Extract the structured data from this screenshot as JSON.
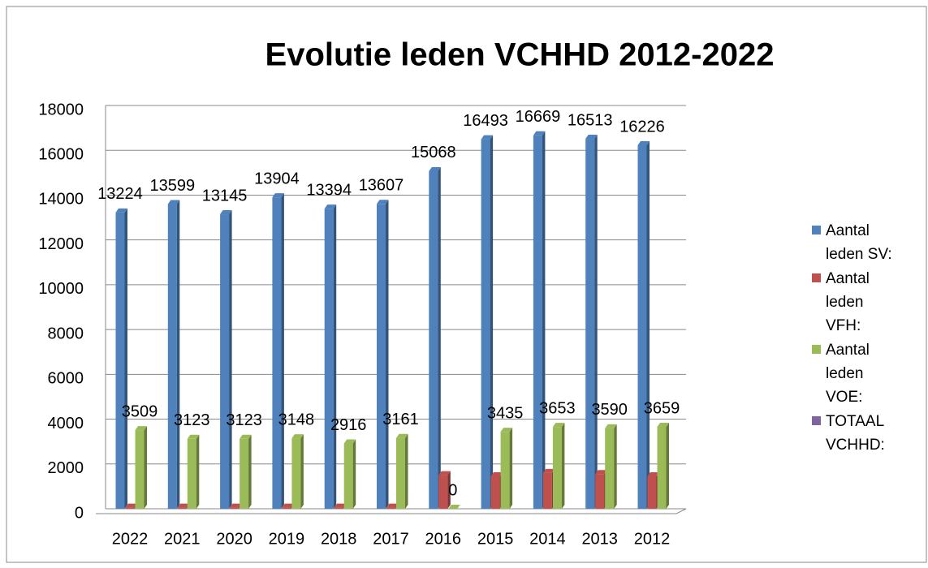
{
  "chart_data": {
    "type": "bar3d",
    "title": "Evolutie leden VCHHD 2012-2022",
    "categories": [
      "2022",
      "2021",
      "2020",
      "2019",
      "2018",
      "2017",
      "2016",
      "2015",
      "2014",
      "2013",
      "2012"
    ],
    "series": [
      {
        "name": "Aantal leden SV:",
        "color": "#4f81bd",
        "labels": true,
        "values": [
          13224,
          13599,
          13145,
          13904,
          13394,
          13607,
          15068,
          16493,
          16669,
          16513,
          16226
        ]
      },
      {
        "name": "Aantal leden VFH:",
        "color": "#c0504d",
        "labels": false,
        "values": [
          50,
          50,
          50,
          50,
          50,
          50,
          1500,
          1450,
          1600,
          1550,
          1450
        ]
      },
      {
        "name": "Aantal leden VOE:",
        "color": "#9bbb59",
        "labels": true,
        "values": [
          3509,
          3123,
          3123,
          3148,
          2916,
          3161,
          0,
          3435,
          3653,
          3590,
          3659
        ]
      },
      {
        "name": "TOTAAL VCHHD:",
        "color": "#8064a2",
        "labels": false,
        "values": [
          null,
          null,
          null,
          null,
          null,
          null,
          null,
          null,
          null,
          null,
          null
        ]
      }
    ],
    "ylim": [
      0,
      18000
    ],
    "yticks": [
      0,
      2000,
      4000,
      6000,
      8000,
      10000,
      12000,
      14000,
      16000,
      18000
    ],
    "grid": true
  }
}
